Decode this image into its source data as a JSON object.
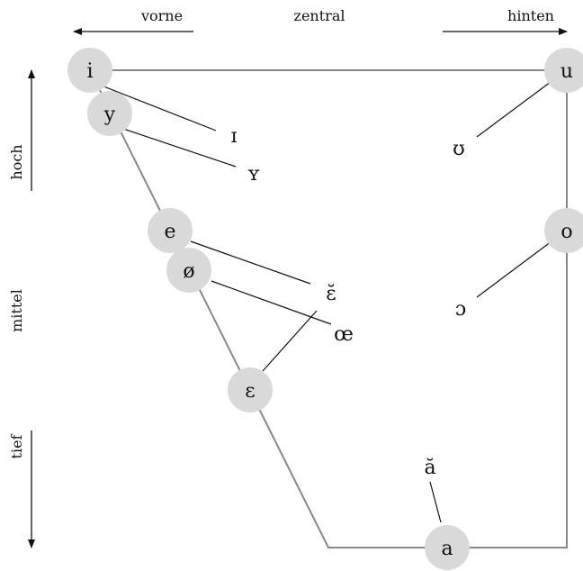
{
  "axes": {
    "top": {
      "left": "vorne",
      "center": "zentral",
      "right": "hinten"
    },
    "side": {
      "top": "hoch",
      "middle": "mittel",
      "bottom": "tief"
    }
  },
  "vowels": {
    "i": "i",
    "y": "y",
    "u": "u",
    "e": "e",
    "o": "o",
    "oe_slash": "ø",
    "epsilon": "ɛ",
    "a": "a"
  },
  "lax_vowels": {
    "small_cap_i": "ɪ",
    "small_cap_y": "ʏ",
    "upsilon": "ʊ",
    "epsilon_breve": "ɛ̆",
    "oe_ligature": "œ",
    "open_o": "ɔ",
    "a_breve": "ă"
  },
  "colors": {
    "circle_fill": "#d9d9d9",
    "trapezoid_stroke": "#888888",
    "connector_stroke": "#111111",
    "text": "#111111"
  }
}
